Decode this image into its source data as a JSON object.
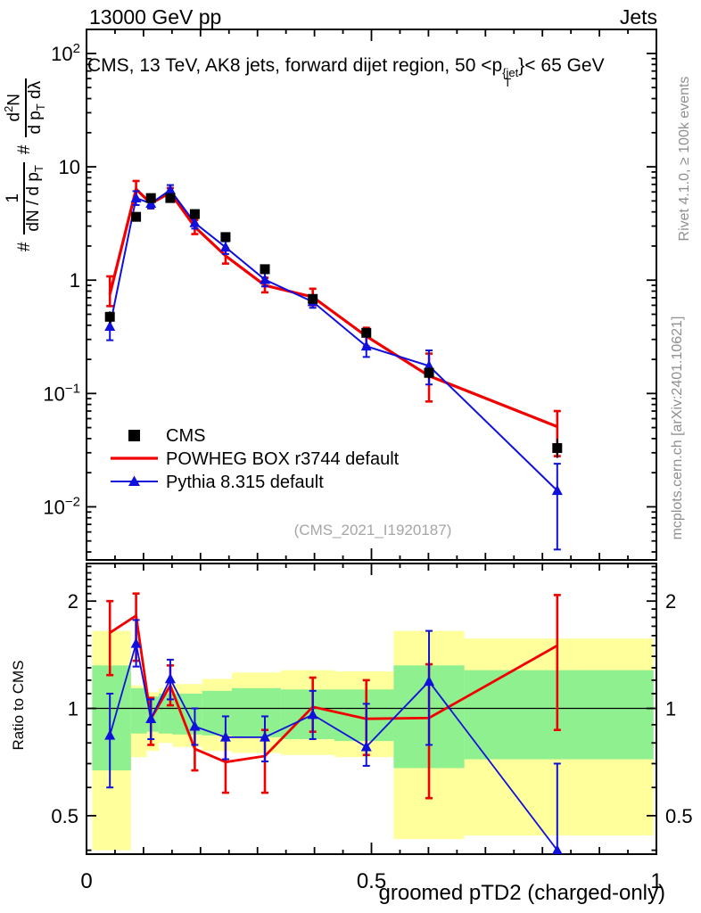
{
  "header": {
    "left": "13000 GeV pp",
    "right": "Jets"
  },
  "panel_title": {
    "prefix": "CMS, 13 TeV, AK8 jets, forward dijet region, 50 <p",
    "sup": "{jet",
    "sub": "T",
    "suffix": "}< 65 GeV"
  },
  "watermark": "(CMS_2021_I1920187)",
  "side_notes": {
    "top": "Rivet 4.1.0, ≥ 100k events",
    "bottom": "mcplots.cern.ch [arXiv:2401.10621]"
  },
  "y_axis_label": {
    "hash1": "#",
    "frac1_num": "1",
    "frac1_den_pre": "dN / d p",
    "frac1_den_sub": "T",
    "hash2": "#",
    "frac2_num_pre": "d",
    "frac2_num_sup": "2",
    "frac2_num_post": "N",
    "frac2_den_pre": "d p",
    "frac2_den_sub": "T",
    "frac2_den_post": " dλ"
  },
  "chart_data": {
    "type": "line",
    "title": "CMS, 13 TeV, AK8 jets, forward dijet region, 50 < pT{jet} < 65 GeV",
    "xlabel": "groomed pTD2 (charged-only)",
    "xlim": [
      0,
      1
    ],
    "xticks": {
      "values": [
        0,
        0.5,
        1
      ],
      "labels": [
        "0",
        "0.5",
        "1"
      ]
    },
    "x": [
      0.041,
      0.087,
      0.113,
      0.147,
      0.19,
      0.244,
      0.313,
      0.397,
      0.491,
      0.601,
      0.826
    ],
    "x_bin_edges": [
      0.01,
      0.078,
      0.106,
      0.127,
      0.151,
      0.203,
      0.255,
      0.341,
      0.435,
      0.539,
      0.663,
      0.995
    ],
    "colors": {
      "cms": "#000000",
      "powheg": "#f20000",
      "pythia": "#1010dd",
      "band_yellow": "#ffff9c",
      "band_green": "#8ef08e"
    },
    "main_panel": {
      "yscale": "log",
      "ylim": [
        0.0034,
        163
      ],
      "yticks": [
        {
          "v": 100,
          "t": "10",
          "e": "2"
        },
        {
          "v": 10,
          "t": "10"
        },
        {
          "v": 1,
          "t": "1"
        },
        {
          "v": 0.1,
          "t": "10",
          "e": "−1"
        },
        {
          "v": 0.01,
          "t": "10",
          "e": "−2"
        }
      ],
      "series": [
        {
          "name": "CMS",
          "marker": "square",
          "line": false,
          "color": "#000000",
          "values": [
            0.475,
            3.62,
            5.3,
            5.3,
            3.83,
            2.4,
            1.25,
            0.683,
            0.343,
            0.152,
            0.033
          ],
          "err_lo": [
            0.42,
            3.3,
            4.9,
            4.9,
            3.55,
            2.22,
            1.15,
            0.63,
            0.31,
            0.135,
            0.027
          ],
          "err_hi": [
            0.53,
            3.95,
            5.7,
            5.7,
            4.1,
            2.58,
            1.36,
            0.74,
            0.375,
            0.17,
            0.04
          ]
        },
        {
          "name": "POWHEG BOX r3744 default",
          "marker": "none",
          "line": true,
          "color": "#f20000",
          "values": [
            0.75,
            6.35,
            4.75,
            5.92,
            2.95,
            1.64,
            0.9,
            0.71,
            0.32,
            0.143,
            0.051
          ],
          "err_lo": [
            0.59,
            5.0,
            4.3,
            5.4,
            2.55,
            1.4,
            0.78,
            0.6,
            0.26,
            0.085,
            0.028
          ],
          "err_hi": [
            1.08,
            7.5,
            5.3,
            6.5,
            3.4,
            1.9,
            1.05,
            0.84,
            0.38,
            0.225,
            0.07
          ]
        },
        {
          "name": "Pythia 8.315 default",
          "marker": "triangle",
          "line": true,
          "color": "#1010dd",
          "values": [
            0.39,
            5.3,
            4.75,
            6.25,
            3.2,
            1.95,
            1.01,
            0.645,
            0.261,
            0.175,
            0.0139
          ],
          "err_lo": [
            0.295,
            4.6,
            4.3,
            5.7,
            2.85,
            1.7,
            0.88,
            0.57,
            0.21,
            0.12,
            0.0042
          ],
          "err_hi": [
            0.5,
            6.1,
            5.3,
            6.9,
            3.55,
            2.2,
            1.15,
            0.73,
            0.32,
            0.24,
            0.024
          ]
        }
      ]
    },
    "ratio_panel": {
      "ylabel": "Ratio to CMS",
      "yscale": "log",
      "ylim": [
        0.39,
        2.55
      ],
      "yticks": {
        "values": [
          2,
          1,
          0.5
        ],
        "labels": [
          "2",
          "1",
          "0.5"
        ]
      },
      "unity": 1,
      "band_yellow": [
        [
          0.4,
          1.65
        ],
        [
          0.73,
          1.16
        ],
        [
          0.76,
          1.11
        ],
        [
          0.8,
          1.14
        ],
        [
          0.78,
          1.17
        ],
        [
          0.76,
          1.21
        ],
        [
          0.75,
          1.26
        ],
        [
          0.74,
          1.28
        ],
        [
          0.73,
          1.27
        ],
        [
          0.43,
          1.65
        ],
        [
          0.44,
          1.57
        ]
      ],
      "band_green": [
        [
          0.67,
          1.32
        ],
        [
          0.85,
          1.14
        ],
        [
          0.86,
          1.08
        ],
        [
          0.85,
          1.1
        ],
        [
          0.845,
          1.1
        ],
        [
          0.84,
          1.12
        ],
        [
          0.83,
          1.14
        ],
        [
          0.82,
          1.13
        ],
        [
          0.81,
          1.13
        ],
        [
          0.68,
          1.32
        ],
        [
          0.72,
          1.28
        ]
      ],
      "series": [
        {
          "name": "POWHEG BOX r3744 default",
          "marker": "none",
          "line": true,
          "color": "#f20000",
          "values": [
            1.63,
            1.82,
            0.935,
            1.16,
            0.77,
            0.707,
            0.735,
            1.01,
            0.935,
            0.94,
            1.5
          ],
          "err_lo": [
            1.24,
            1.36,
            0.79,
            1.02,
            0.67,
            0.58,
            0.58,
            0.86,
            0.74,
            0.56,
            0.87
          ],
          "err_hi": [
            2.0,
            2.1,
            1.07,
            1.32,
            0.88,
            0.83,
            0.87,
            1.22,
            1.2,
            1.33,
            2.08
          ]
        },
        {
          "name": "Pythia 8.315 default",
          "marker": "triangle",
          "line": true,
          "color": "#1010dd",
          "values": [
            0.84,
            1.52,
            0.935,
            1.21,
            0.89,
            0.83,
            0.83,
            0.96,
            0.78,
            1.19,
            0.4
          ],
          "err_lo": [
            0.6,
            1.31,
            0.82,
            1.06,
            0.79,
            0.72,
            0.71,
            0.82,
            0.69,
            0.79,
            0.33
          ],
          "err_hi": [
            1.1,
            1.77,
            1.06,
            1.37,
            1.0,
            0.95,
            0.95,
            1.12,
            1.03,
            1.65,
            0.7
          ]
        }
      ]
    }
  }
}
